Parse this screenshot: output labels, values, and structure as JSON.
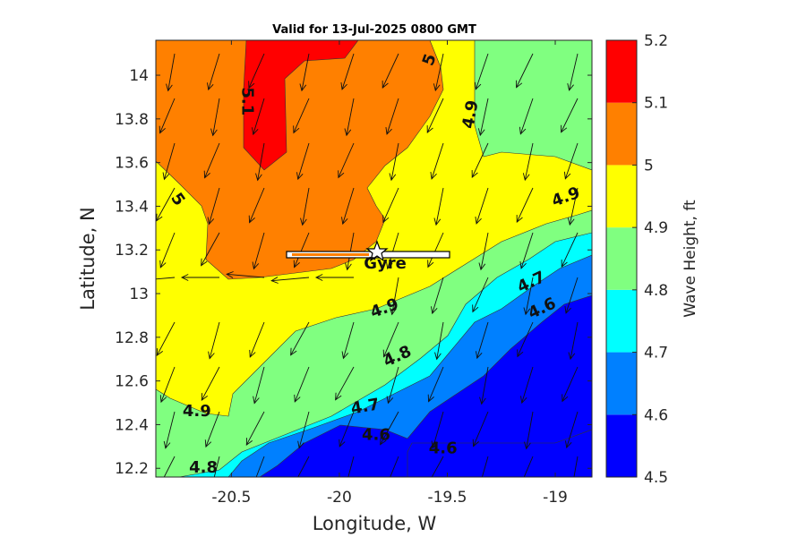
{
  "chart_data": {
    "type": "contour",
    "title": "Valid for 13-Jul-2025 0800 GMT",
    "xlabel": "Longitude, W",
    "ylabel": "Latitude, N",
    "xlim": [
      -20.85,
      -18.83
    ],
    "ylim": [
      12.16,
      14.16
    ],
    "xticks": [
      -20.5,
      -20,
      -19.5,
      -19
    ],
    "xtick_labels": [
      "-20.5",
      "-20",
      "-19.5",
      "-19"
    ],
    "yticks": [
      12.2,
      12.4,
      12.6,
      12.8,
      13,
      13.2,
      13.4,
      13.6,
      13.8,
      14
    ],
    "ytick_labels": [
      "12.2",
      "12.4",
      "12.6",
      "12.8",
      "13",
      "13.2",
      "13.4",
      "13.6",
      "13.8",
      "14"
    ],
    "colorbar": {
      "label": "Wave Height, ft",
      "levels": [
        4.5,
        4.6,
        4.7,
        4.8,
        4.9,
        5.0,
        5.1,
        5.2
      ],
      "tick_labels": [
        "4.5",
        "4.6",
        "4.7",
        "4.8",
        "4.9",
        "5",
        "5.1",
        "5.2"
      ],
      "colors": [
        "#0000ff",
        "#0080ff",
        "#00ffff",
        "#80ff80",
        "#ffff00",
        "#ff8000",
        "#ff0000"
      ]
    },
    "contour_labels": [
      {
        "text": "5.1",
        "lon": -20.43,
        "lat": 13.88,
        "rot": 90
      },
      {
        "text": "5",
        "lon": -19.58,
        "lat": 14.07,
        "rot": -70
      },
      {
        "text": "4.9",
        "lon": -19.39,
        "lat": 13.82,
        "rot": -80
      },
      {
        "text": "5",
        "lon": -20.75,
        "lat": 13.43,
        "rot": 55
      },
      {
        "text": "4.9",
        "lon": -18.95,
        "lat": 13.44,
        "rot": -20
      },
      {
        "text": "4.9",
        "lon": -19.79,
        "lat": 12.93,
        "rot": -20
      },
      {
        "text": "4.7",
        "lon": -19.11,
        "lat": 13.05,
        "rot": -25
      },
      {
        "text": "4.6",
        "lon": -19.06,
        "lat": 12.93,
        "rot": -25
      },
      {
        "text": "4.8",
        "lon": -19.73,
        "lat": 12.71,
        "rot": -25
      },
      {
        "text": "4.9",
        "lon": -20.66,
        "lat": 12.46,
        "rot": 0
      },
      {
        "text": "4.7",
        "lon": -19.88,
        "lat": 12.48,
        "rot": -10
      },
      {
        "text": "4.6",
        "lon": -19.83,
        "lat": 12.35,
        "rot": 0
      },
      {
        "text": "4.6",
        "lon": -19.52,
        "lat": 12.29,
        "rot": 0
      },
      {
        "text": "4.8",
        "lon": -20.63,
        "lat": 12.2,
        "rot": 0
      }
    ],
    "marker": {
      "label": "Gyre",
      "lon": -19.8,
      "lat": 13.21,
      "symbol": "star"
    },
    "vectors": "wind/wave direction arrows on regular grid, mostly pointing south-southwest"
  }
}
